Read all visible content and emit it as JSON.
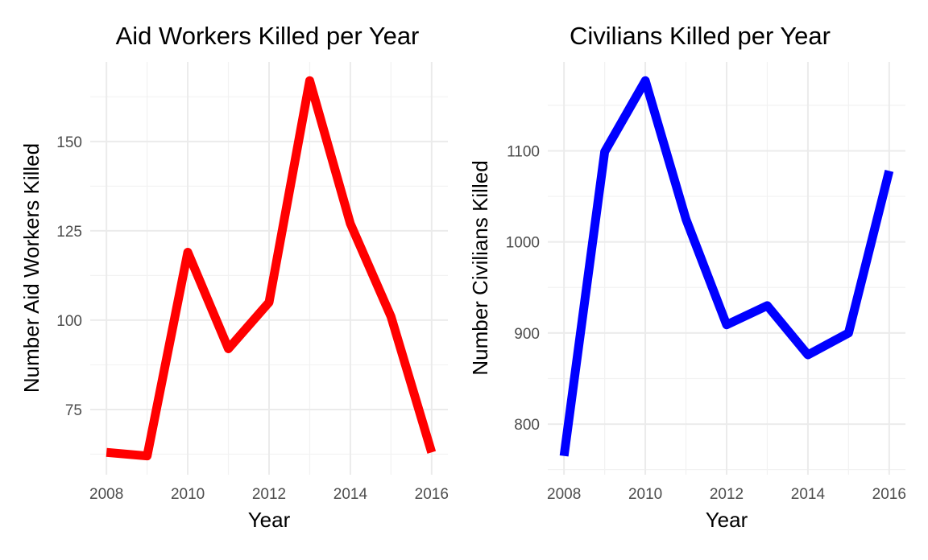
{
  "chart_data": [
    {
      "type": "line",
      "title": "Aid Workers Killed per Year",
      "xlabel": "Year",
      "ylabel": "Number Aid Workers Killed",
      "x": [
        2008,
        2009,
        2010,
        2011,
        2012,
        2013,
        2014,
        2015,
        2016
      ],
      "series": [
        {
          "values": [
            63,
            62,
            119,
            92,
            105,
            167,
            127,
            101,
            63
          ],
          "color": "#ff0000"
        }
      ],
      "xlim": [
        2008,
        2016
      ],
      "ylim": [
        62,
        167
      ],
      "x_ticks": [
        2008,
        2010,
        2012,
        2014,
        2016
      ],
      "y_ticks": [
        75,
        100,
        125,
        150
      ],
      "grid": true,
      "legend": "none"
    },
    {
      "type": "line",
      "title": "Civilians Killed per Year",
      "xlabel": "Year",
      "ylabel": "Number Civilians Killed",
      "x": [
        2008,
        2009,
        2010,
        2011,
        2012,
        2013,
        2014,
        2015,
        2016
      ],
      "series": [
        {
          "values": [
            765,
            1099,
            1177,
            1025,
            909,
            930,
            876,
            900,
            1078
          ],
          "color": "#0000ff"
        }
      ],
      "xlim": [
        2008,
        2016
      ],
      "ylim": [
        765,
        1177
      ],
      "x_ticks": [
        2008,
        2010,
        2012,
        2014,
        2016
      ],
      "y_ticks": [
        800,
        900,
        1000,
        1100
      ],
      "grid": true,
      "legend": "none"
    }
  ]
}
